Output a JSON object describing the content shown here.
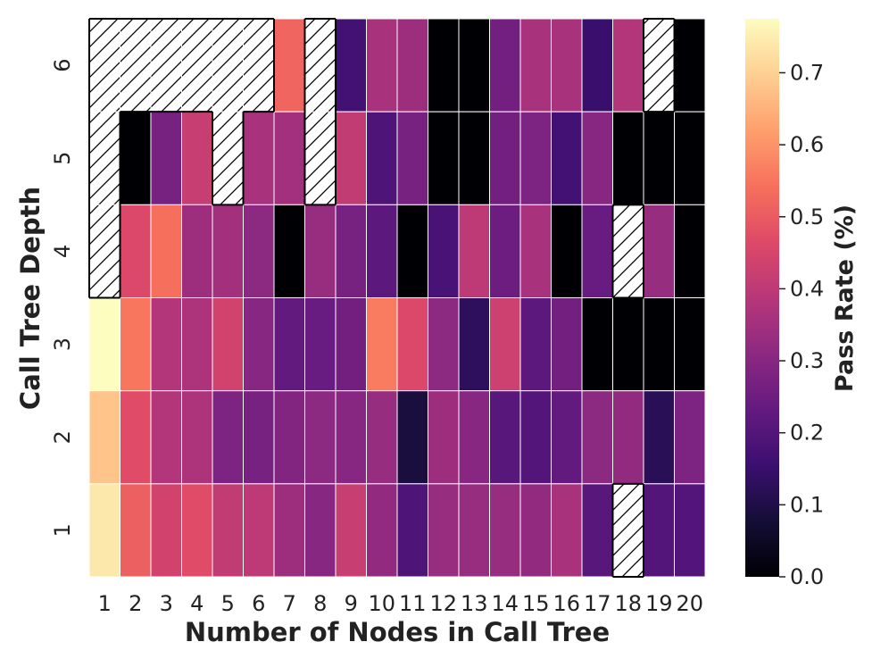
{
  "chart_data": {
    "type": "heatmap",
    "xlabel": "Number of Nodes in Call Tree",
    "ylabel": "Call Tree Depth",
    "x_categories": [
      "1",
      "2",
      "3",
      "4",
      "5",
      "6",
      "7",
      "8",
      "9",
      "10",
      "11",
      "12",
      "13",
      "14",
      "15",
      "16",
      "17",
      "18",
      "19",
      "20"
    ],
    "y_categories": [
      "6",
      "5",
      "4",
      "3",
      "2",
      "1"
    ],
    "colorbar": {
      "label": "Pass Rate (%)",
      "min": 0.0,
      "max": 0.775,
      "ticks": [
        "0.0",
        "0.1",
        "0.2",
        "0.3",
        "0.4",
        "0.5",
        "0.6",
        "0.7"
      ],
      "colormap": "magma"
    },
    "missing_marker": "hatched",
    "values": [
      [
        null,
        null,
        null,
        null,
        null,
        null,
        0.52,
        null,
        0.17,
        0.36,
        0.34,
        0.0,
        0.0,
        0.26,
        0.36,
        0.36,
        0.15,
        0.38,
        null,
        0.0
      ],
      [
        null,
        0.0,
        0.27,
        0.42,
        null,
        0.36,
        0.35,
        null,
        0.41,
        0.19,
        0.27,
        0.0,
        0.0,
        0.26,
        0.28,
        0.17,
        0.3,
        0.0,
        0.0,
        0.0
      ],
      [
        null,
        0.46,
        0.54,
        0.34,
        0.35,
        0.31,
        0.0,
        0.33,
        0.27,
        0.22,
        0.0,
        0.18,
        0.4,
        0.25,
        0.36,
        0.0,
        0.24,
        null,
        0.33,
        0.0
      ],
      [
        0.775,
        0.55,
        0.38,
        0.37,
        0.44,
        0.3,
        0.23,
        0.24,
        0.26,
        0.56,
        0.46,
        0.31,
        0.13,
        0.43,
        0.22,
        0.26,
        0.0,
        0.0,
        0.0,
        0.0
      ],
      [
        0.68,
        0.47,
        0.38,
        0.37,
        0.28,
        0.27,
        0.29,
        0.31,
        0.3,
        0.33,
        0.09,
        0.34,
        0.3,
        0.21,
        0.2,
        0.23,
        0.31,
        0.32,
        0.12,
        0.28
      ],
      [
        0.74,
        0.51,
        0.44,
        0.47,
        0.41,
        0.4,
        0.34,
        0.3,
        0.42,
        0.32,
        0.19,
        0.33,
        0.33,
        0.33,
        0.32,
        0.36,
        0.21,
        null,
        0.2,
        0.2
      ]
    ]
  }
}
